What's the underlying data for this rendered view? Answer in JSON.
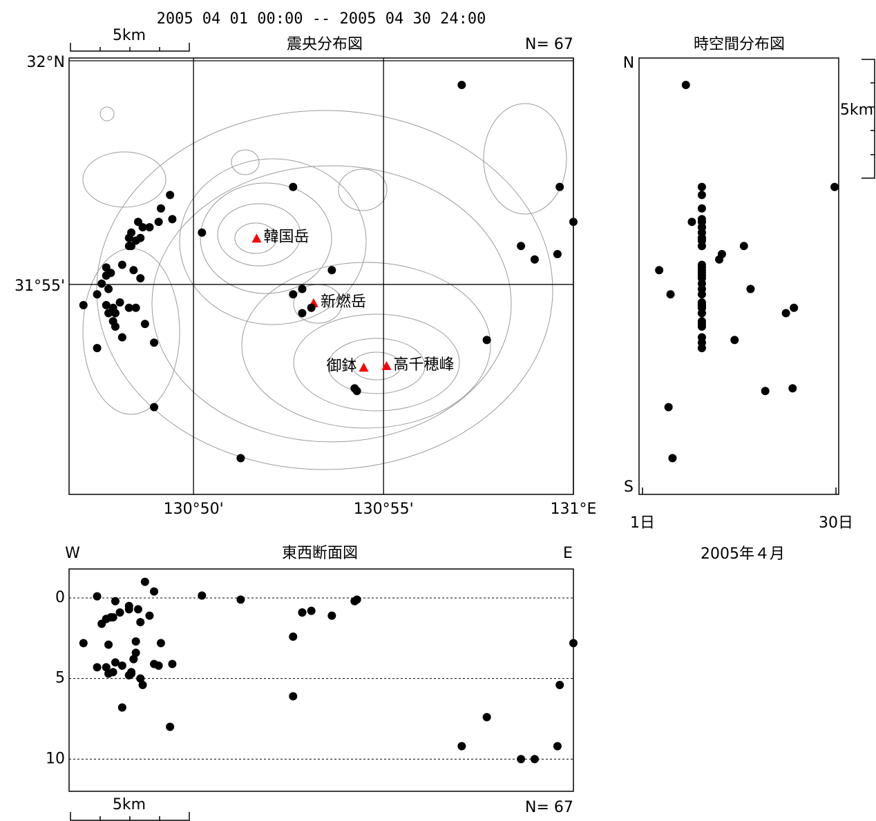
{
  "title": "2005 04 01 00:00 -- 2005 04 30 24:00",
  "chart_data": [
    {
      "type": "scatter",
      "title": "震央分布図",
      "count_label": "N= 67",
      "scale_label": "5km",
      "xlim": [
        130.7787,
        131.0
      ],
      "ylim": [
        31.8385,
        32.0
      ],
      "xticks": [
        {
          "value": 130.8333,
          "label": "130°50'"
        },
        {
          "value": 130.9167,
          "label": "130°55'"
        },
        {
          "value": 131.0,
          "label": "131°E"
        }
      ],
      "yticks": [
        {
          "value": 31.9167,
          "label": "31°55'"
        },
        {
          "value": 32.0,
          "label": "32°N"
        }
      ],
      "grid": true,
      "series": [
        {
          "color": "#000000",
          "x": [
            130.951,
            130.877,
            130.994,
            130.837,
            131.0,
            130.977,
            130.983,
            130.993,
            130.894,
            130.877,
            130.881,
            130.881,
            130.885,
            130.962,
            130.904,
            130.905,
            130.816,
            130.854,
            130.823,
            130.819,
            130.824,
            130.818,
            130.809,
            130.811,
            130.814,
            130.806,
            130.805,
            130.808,
            130.81,
            130.806,
            130.795,
            130.797,
            130.802,
            130.807,
            130.795,
            130.81,
            130.793,
            130.791,
            130.785,
            130.795,
            130.798,
            130.801,
            130.805,
            130.808,
            130.796,
            130.798,
            130.799,
            130.812,
            130.802,
            130.816,
            130.791,
            130.796,
            130.805,
            130.799
          ],
          "y": [
            31.991,
            31.953,
            31.953,
            31.936,
            31.94,
            31.931,
            31.926,
            31.928,
            31.922,
            31.913,
            31.915,
            31.906,
            31.908,
            31.896,
            31.878,
            31.877,
            31.871,
            31.852,
            31.95,
            31.945,
            31.941,
            31.94,
            31.94,
            31.938,
            31.938,
            31.936,
            31.934,
            31.933,
            31.934,
            31.931,
            31.923,
            31.921,
            31.924,
            31.922,
            31.92,
            31.919,
            31.917,
            31.913,
            31.909,
            31.909,
            31.908,
            31.91,
            31.908,
            31.908,
            31.906,
            31.903,
            31.901,
            31.902,
            31.897,
            31.895,
            31.893,
            31.915,
            31.931,
            31.906
          ]
        }
      ],
      "volcanoes": [
        {
          "name": "韓国岳",
          "lon": 130.861,
          "lat": 31.9336,
          "color": "#ff0000"
        },
        {
          "name": "新燃岳",
          "lon": 130.886,
          "lat": 31.9095,
          "color": "#ff0000"
        },
        {
          "name": "御鉢",
          "lon": 130.908,
          "lat": 31.8855,
          "color": "#ff0000"
        },
        {
          "name": "高千穂峰",
          "lon": 130.918,
          "lat": 31.8861,
          "color": "#ff0000"
        }
      ]
    },
    {
      "type": "scatter",
      "title": "時空間分布図",
      "x_label": "2005年４月",
      "y_top_label": "N",
      "y_bottom_label": "S",
      "scale_label": "5km",
      "xlim": [
        0.48,
        30.41
      ],
      "xticks": [
        {
          "value": 1,
          "label": "1日"
        },
        {
          "value": 30,
          "label": "30日"
        }
      ],
      "series": [
        {
          "color": "#000000",
          "x": [
            7.5,
            9.9,
            29.8,
            9.9,
            8.4,
            16.2,
            12.5,
            12.9,
            3.5,
            5.2,
            17.2,
            22.5,
            23.7,
            14.8,
            23.5,
            19.4,
            4.9,
            5.5,
            9.9,
            9.9,
            9.9,
            9.9,
            9.9,
            9.9,
            9.9,
            9.9,
            9.9,
            9.9,
            9.9,
            9.9,
            9.9,
            9.9,
            9.9,
            9.9,
            9.9,
            9.9,
            9.9,
            9.9,
            9.9,
            9.9,
            9.9,
            9.9,
            9.9,
            9.9,
            9.9,
            9.9,
            9.9,
            9.9,
            9.9,
            9.9,
            9.9,
            9.9,
            9.9,
            9.9
          ]
        }
      ]
    },
    {
      "type": "scatter",
      "title": "東西断面図",
      "x_left_label": "W",
      "x_right_label": "E",
      "scale_label": "5km",
      "count_label": "N= 67",
      "ylim": [
        -1.8,
        12
      ],
      "y_inverted": true,
      "yticks": [
        0,
        5,
        10
      ],
      "grid": true,
      "series": [
        {
          "color": "#000000",
          "y": [
            9.2,
            2.4,
            5.4,
            -0.15,
            2.8,
            10.0,
            10.0,
            9.2,
            1.1,
            6.1,
            0.9,
            0.9,
            0.8,
            7.4,
            0.2,
            0.1,
            4.1,
            0.1,
            8.0,
            2.8,
            4.1,
            4.2,
            0.7,
            5.4,
            1.1,
            4.7,
            4.8,
            2.7,
            5.0,
            4.6,
            4.3,
            1.2,
            4.2,
            3.8,
            1.3,
            1.5,
            1.6,
            -0.1,
            2.8,
            1.3,
            4.6,
            0.9,
            0.5,
            3.4,
            4.7,
            1.2,
            0.2,
            -1.0,
            6.8,
            -0.4,
            4.3,
            2.9,
            0.7,
            4.0
          ]
        }
      ]
    }
  ]
}
